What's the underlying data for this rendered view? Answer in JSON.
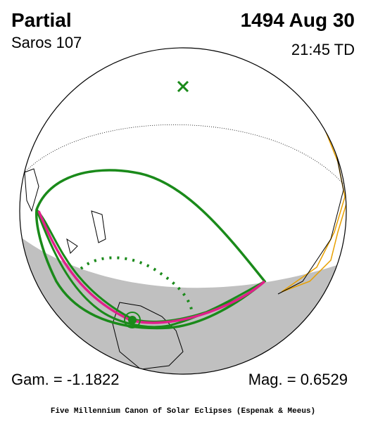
{
  "header": {
    "type": "Partial",
    "date": "1494 Aug 30",
    "saros": "Saros 107",
    "time": "21:45 TD"
  },
  "footer": {
    "gamma": "Gam. = -1.1822",
    "magnitude": "Mag. = 0.6529",
    "credit": "Five Millennium Canon of Solar Eclipses (Espenak & Meeus)"
  }
}
